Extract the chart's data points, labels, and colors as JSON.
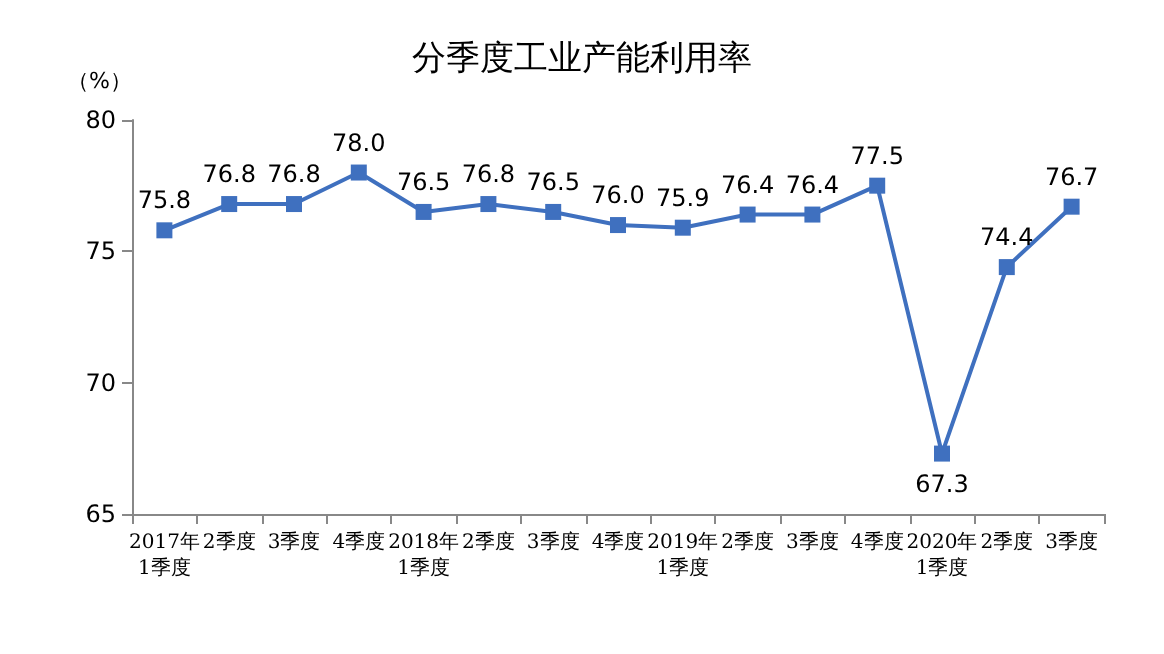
{
  "chart_data": {
    "type": "line",
    "title": "分季度工业产能利用率",
    "ylabel": "（%）",
    "categories": [
      "2017年\n1季度",
      "2季度",
      "3季度",
      "4季度",
      "2018年\n1季度",
      "2季度",
      "3季度",
      "4季度",
      "2019年\n1季度",
      "2季度",
      "3季度",
      "4季度",
      "2020年\n1季度",
      "2季度",
      "3季度"
    ],
    "values": [
      75.8,
      76.8,
      76.8,
      78.0,
      76.5,
      76.8,
      76.5,
      76.0,
      75.9,
      76.4,
      76.4,
      77.5,
      67.3,
      74.4,
      76.7
    ],
    "value_labels": [
      "75.8",
      "76.8",
      "76.8",
      "78.0",
      "76.5",
      "76.8",
      "76.5",
      "76.0",
      "75.9",
      "76.4",
      "76.4",
      "77.5",
      "67.3",
      "74.4",
      "76.7"
    ],
    "color": "#3f70bf",
    "marker": "square",
    "line_style": "solid",
    "ylim": [
      65,
      80
    ],
    "yticks": [
      65,
      70,
      75,
      80
    ],
    "grid": false
  }
}
